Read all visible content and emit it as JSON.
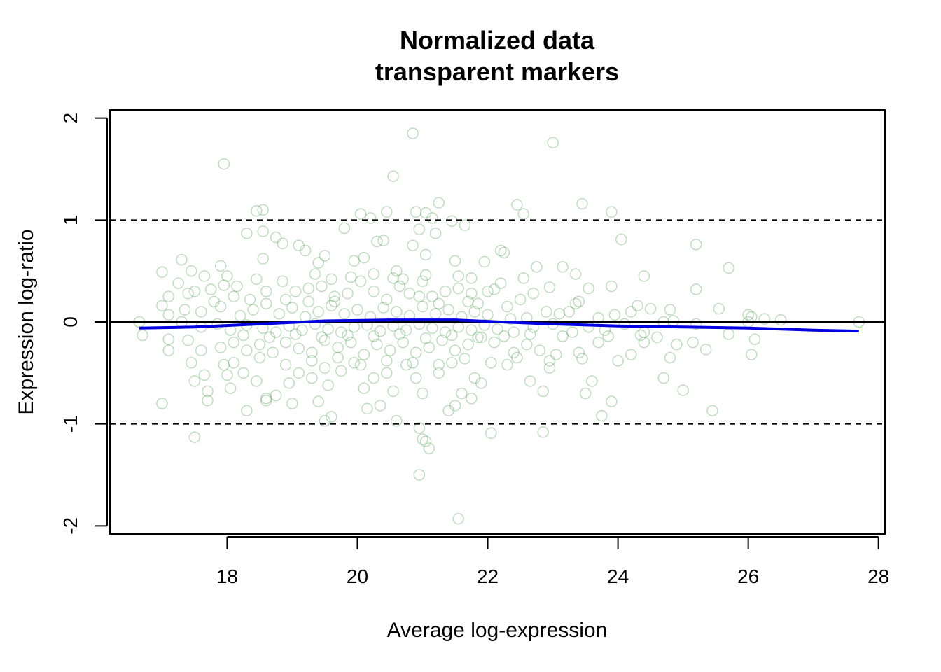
{
  "chart_data": {
    "type": "scatter",
    "title": [
      "Normalized data",
      "transparent markers"
    ],
    "xlabel": "Average log-expression",
    "ylabel": "Expression log-ratio",
    "xlim": [
      16.2,
      28.1
    ],
    "ylim": [
      -2.08,
      2.08
    ],
    "xticks": [
      "18",
      "20",
      "22",
      "24",
      "26",
      "28"
    ],
    "yticks": [
      "-2",
      "-1",
      "0",
      "1",
      "2"
    ],
    "grid": false,
    "legend": "none",
    "point_color": "#2e8b2e",
    "line_color": "#0000e0",
    "reference_lines": {
      "solid": 0,
      "dashed": [
        1,
        -1
      ]
    },
    "points": [
      [
        20.85,
        1.85
      ],
      [
        23.0,
        1.76
      ],
      [
        17.95,
        1.55
      ],
      [
        20.55,
        1.43
      ],
      [
        18.45,
        1.09
      ],
      [
        18.55,
        1.1
      ],
      [
        20.05,
        1.06
      ],
      [
        20.2,
        1.02
      ],
      [
        20.45,
        1.08
      ],
      [
        20.9,
        1.08
      ],
      [
        21.05,
        1.07
      ],
      [
        21.15,
        1.02
      ],
      [
        21.25,
        1.17
      ],
      [
        21.45,
        0.99
      ],
      [
        21.65,
        0.95
      ],
      [
        22.45,
        1.15
      ],
      [
        22.55,
        1.06
      ],
      [
        23.45,
        1.16
      ],
      [
        23.9,
        1.08
      ],
      [
        19.8,
        0.92
      ],
      [
        20.95,
        0.91
      ],
      [
        21.2,
        0.87
      ],
      [
        18.3,
        0.87
      ],
      [
        18.55,
        0.89
      ],
      [
        18.75,
        0.83
      ],
      [
        18.85,
        0.77
      ],
      [
        19.1,
        0.75
      ],
      [
        19.2,
        0.7
      ],
      [
        20.3,
        0.79
      ],
      [
        20.4,
        0.8
      ],
      [
        20.85,
        0.75
      ],
      [
        21.05,
        0.66
      ],
      [
        22.2,
        0.7
      ],
      [
        22.25,
        0.68
      ],
      [
        24.05,
        0.81
      ],
      [
        25.2,
        0.76
      ],
      [
        17.3,
        0.61
      ],
      [
        17.0,
        0.49
      ],
      [
        17.45,
        0.5
      ],
      [
        17.65,
        0.45
      ],
      [
        17.9,
        0.55
      ],
      [
        18.55,
        0.62
      ],
      [
        19.4,
        0.58
      ],
      [
        19.5,
        0.65
      ],
      [
        19.95,
        0.6
      ],
      [
        20.1,
        0.63
      ],
      [
        20.6,
        0.5
      ],
      [
        21.05,
        0.46
      ],
      [
        21.5,
        0.6
      ],
      [
        21.75,
        0.43
      ],
      [
        21.95,
        0.59
      ],
      [
        22.75,
        0.54
      ],
      [
        23.15,
        0.54
      ],
      [
        23.35,
        0.47
      ],
      [
        24.4,
        0.45
      ],
      [
        25.7,
        0.53
      ],
      [
        17.1,
        0.25
      ],
      [
        17.25,
        0.38
      ],
      [
        17.4,
        0.28
      ],
      [
        17.5,
        0.3
      ],
      [
        17.75,
        0.32
      ],
      [
        17.95,
        0.36
      ],
      [
        18.1,
        0.25
      ],
      [
        18.35,
        0.22
      ],
      [
        18.6,
        0.3
      ],
      [
        18.85,
        0.4
      ],
      [
        19.05,
        0.3
      ],
      [
        19.25,
        0.33
      ],
      [
        19.45,
        0.35
      ],
      [
        19.65,
        0.25
      ],
      [
        19.85,
        0.28
      ],
      [
        20.05,
        0.4
      ],
      [
        20.25,
        0.3
      ],
      [
        20.45,
        0.22
      ],
      [
        20.65,
        0.35
      ],
      [
        20.8,
        0.28
      ],
      [
        21.0,
        0.4
      ],
      [
        21.15,
        0.25
      ],
      [
        21.35,
        0.3
      ],
      [
        21.55,
        0.33
      ],
      [
        21.75,
        0.28
      ],
      [
        22.0,
        0.3
      ],
      [
        22.2,
        0.38
      ],
      [
        22.5,
        0.22
      ],
      [
        22.7,
        0.28
      ],
      [
        22.95,
        0.34
      ],
      [
        23.4,
        0.2
      ],
      [
        23.55,
        0.33
      ],
      [
        23.9,
        0.35
      ],
      [
        24.3,
        0.16
      ],
      [
        25.2,
        0.32
      ],
      [
        17.0,
        0.16
      ],
      [
        17.35,
        0.12
      ],
      [
        17.6,
        0.1
      ],
      [
        17.9,
        0.15
      ],
      [
        18.2,
        0.06
      ],
      [
        18.4,
        0.12
      ],
      [
        18.6,
        0.18
      ],
      [
        18.8,
        0.08
      ],
      [
        19.0,
        0.14
      ],
      [
        19.2,
        0.05
      ],
      [
        19.4,
        0.1
      ],
      [
        19.6,
        0.16
      ],
      [
        19.8,
        0.08
      ],
      [
        20.0,
        0.12
      ],
      [
        20.2,
        0.05
      ],
      [
        20.4,
        0.14
      ],
      [
        20.6,
        0.1
      ],
      [
        20.8,
        0.06
      ],
      [
        21.0,
        0.15
      ],
      [
        21.2,
        0.08
      ],
      [
        21.4,
        0.12
      ],
      [
        21.6,
        0.05
      ],
      [
        21.8,
        0.1
      ],
      [
        22.0,
        0.07
      ],
      [
        22.3,
        0.15
      ],
      [
        22.6,
        0.04
      ],
      [
        22.9,
        0.1
      ],
      [
        23.1,
        0.08
      ],
      [
        23.35,
        0.18
      ],
      [
        23.7,
        0.04
      ],
      [
        23.95,
        0.07
      ],
      [
        24.2,
        0.1
      ],
      [
        24.5,
        0.13
      ],
      [
        24.8,
        0.12
      ],
      [
        25.55,
        0.13
      ],
      [
        26.0,
        0.07
      ],
      [
        26.05,
        0.05
      ],
      [
        26.25,
        0.03
      ],
      [
        26.5,
        0.02
      ],
      [
        27.7,
        0.0
      ],
      [
        16.65,
        0.0
      ],
      [
        16.7,
        -0.13
      ],
      [
        17.1,
        0.07
      ],
      [
        17.3,
        0.0
      ],
      [
        17.6,
        -0.05
      ],
      [
        17.85,
        -0.02
      ],
      [
        18.05,
        -0.08
      ],
      [
        18.3,
        -0.03
      ],
      [
        18.55,
        -0.06
      ],
      [
        18.75,
        -0.1
      ],
      [
        18.95,
        -0.04
      ],
      [
        19.15,
        -0.08
      ],
      [
        19.35,
        -0.02
      ],
      [
        19.55,
        -0.07
      ],
      [
        19.75,
        -0.1
      ],
      [
        19.95,
        -0.05
      ],
      [
        20.15,
        -0.03
      ],
      [
        20.35,
        -0.09
      ],
      [
        20.55,
        -0.04
      ],
      [
        20.75,
        -0.08
      ],
      [
        20.95,
        -0.02
      ],
      [
        21.15,
        -0.06
      ],
      [
        21.35,
        -0.1
      ],
      [
        21.55,
        -0.05
      ],
      [
        21.75,
        -0.08
      ],
      [
        21.95,
        -0.03
      ],
      [
        22.15,
        -0.07
      ],
      [
        22.4,
        -0.1
      ],
      [
        22.7,
        -0.05
      ],
      [
        23.0,
        -0.02
      ],
      [
        23.3,
        -0.1
      ],
      [
        23.55,
        -0.05
      ],
      [
        23.8,
        -0.08
      ],
      [
        24.1,
        -0.02
      ],
      [
        24.4,
        -0.1
      ],
      [
        24.7,
        0.0
      ],
      [
        24.85,
        0.01
      ],
      [
        25.2,
        -0.02
      ],
      [
        25.7,
        -0.12
      ],
      [
        26.0,
        0.0
      ],
      [
        17.1,
        -0.17
      ],
      [
        17.1,
        -0.28
      ],
      [
        17.4,
        -0.18
      ],
      [
        17.6,
        -0.28
      ],
      [
        17.9,
        -0.25
      ],
      [
        18.1,
        -0.2
      ],
      [
        18.3,
        -0.28
      ],
      [
        18.5,
        -0.22
      ],
      [
        18.7,
        -0.3
      ],
      [
        18.9,
        -0.2
      ],
      [
        19.1,
        -0.26
      ],
      [
        19.3,
        -0.3
      ],
      [
        19.5,
        -0.18
      ],
      [
        19.7,
        -0.25
      ],
      [
        19.9,
        -0.2
      ],
      [
        20.1,
        -0.32
      ],
      [
        20.3,
        -0.22
      ],
      [
        20.5,
        -0.28
      ],
      [
        20.7,
        -0.2
      ],
      [
        20.9,
        -0.3
      ],
      [
        21.1,
        -0.25
      ],
      [
        21.3,
        -0.18
      ],
      [
        21.5,
        -0.28
      ],
      [
        21.7,
        -0.22
      ],
      [
        21.9,
        -0.15
      ],
      [
        22.1,
        -0.2
      ],
      [
        22.4,
        -0.3
      ],
      [
        22.6,
        -0.22
      ],
      [
        22.8,
        -0.28
      ],
      [
        23.05,
        -0.32
      ],
      [
        23.4,
        -0.3
      ],
      [
        23.7,
        -0.2
      ],
      [
        24.0,
        -0.38
      ],
      [
        24.4,
        -0.2
      ],
      [
        24.9,
        -0.22
      ],
      [
        25.15,
        -0.2
      ],
      [
        25.35,
        -0.27
      ],
      [
        26.05,
        -0.32
      ],
      [
        26.1,
        -0.17
      ],
      [
        17.45,
        -0.4
      ],
      [
        17.5,
        -0.58
      ],
      [
        17.65,
        -0.52
      ],
      [
        17.7,
        -0.68
      ],
      [
        17.95,
        -0.42
      ],
      [
        18.0,
        -0.52
      ],
      [
        18.05,
        -0.65
      ],
      [
        18.25,
        -0.5
      ],
      [
        18.45,
        -0.58
      ],
      [
        18.6,
        -0.75
      ],
      [
        18.75,
        -0.72
      ],
      [
        18.95,
        -0.6
      ],
      [
        19.1,
        -0.5
      ],
      [
        19.3,
        -0.55
      ],
      [
        19.5,
        -0.45
      ],
      [
        19.55,
        -0.62
      ],
      [
        19.75,
        -0.48
      ],
      [
        19.95,
        -0.4
      ],
      [
        20.1,
        -0.65
      ],
      [
        20.25,
        -0.55
      ],
      [
        20.45,
        -0.5
      ],
      [
        20.55,
        -0.68
      ],
      [
        20.75,
        -0.42
      ],
      [
        20.9,
        -0.55
      ],
      [
        21.0,
        -0.7
      ],
      [
        21.25,
        -0.5
      ],
      [
        21.45,
        -0.4
      ],
      [
        21.6,
        -0.7
      ],
      [
        21.8,
        -0.55
      ],
      [
        21.9,
        -0.6
      ],
      [
        22.3,
        -0.42
      ],
      [
        22.65,
        -0.58
      ],
      [
        22.85,
        -0.68
      ],
      [
        22.95,
        -0.45
      ],
      [
        23.5,
        -0.7
      ],
      [
        23.6,
        -0.58
      ],
      [
        24.7,
        -0.55
      ],
      [
        25.0,
        -0.67
      ],
      [
        17.0,
        -0.8
      ],
      [
        17.7,
        -0.77
      ],
      [
        18.3,
        -0.87
      ],
      [
        18.6,
        -0.77
      ],
      [
        19.0,
        -0.8
      ],
      [
        19.4,
        -0.78
      ],
      [
        19.5,
        -0.97
      ],
      [
        19.6,
        -0.93
      ],
      [
        20.15,
        -0.85
      ],
      [
        20.35,
        -0.82
      ],
      [
        20.6,
        -0.97
      ],
      [
        21.4,
        -0.87
      ],
      [
        21.5,
        -0.82
      ],
      [
        21.75,
        -0.75
      ],
      [
        23.75,
        -0.92
      ],
      [
        23.9,
        -0.78
      ],
      [
        25.45,
        -0.87
      ],
      [
        17.5,
        -1.13
      ],
      [
        20.95,
        -1.04
      ],
      [
        21.0,
        -1.15
      ],
      [
        21.05,
        -1.17
      ],
      [
        21.1,
        -1.24
      ],
      [
        22.05,
        -1.09
      ],
      [
        22.85,
        -1.08
      ],
      [
        20.95,
        -1.5
      ],
      [
        21.55,
        -1.93
      ],
      [
        19.25,
        0.2
      ],
      [
        19.35,
        0.47
      ],
      [
        19.65,
        0.2
      ],
      [
        19.9,
        0.44
      ],
      [
        20.25,
        0.47
      ],
      [
        20.7,
        0.42
      ],
      [
        20.95,
        0.25
      ],
      [
        21.25,
        0.18
      ],
      [
        21.55,
        0.45
      ],
      [
        21.85,
        0.18
      ],
      [
        22.1,
        0.32
      ],
      [
        22.35,
        0.03
      ],
      [
        22.55,
        0.43
      ],
      [
        23.25,
        0.1
      ],
      [
        17.8,
        0.2
      ],
      [
        18.0,
        0.45
      ],
      [
        18.15,
        0.35
      ],
      [
        18.45,
        0.42
      ],
      [
        18.9,
        0.22
      ],
      [
        19.6,
        0.42
      ],
      [
        20.55,
        0.43
      ],
      [
        21.7,
        0.2
      ],
      [
        19.05,
        -0.12
      ],
      [
        19.45,
        -0.15
      ],
      [
        19.85,
        -0.13
      ],
      [
        20.25,
        -0.14
      ],
      [
        20.65,
        -0.12
      ],
      [
        21.05,
        -0.16
      ],
      [
        21.45,
        -0.13
      ],
      [
        21.85,
        -0.15
      ],
      [
        18.25,
        -0.13
      ],
      [
        18.65,
        -0.15
      ],
      [
        22.25,
        -0.14
      ],
      [
        22.65,
        -0.12
      ],
      [
        23.15,
        -0.14
      ],
      [
        23.85,
        -0.14
      ],
      [
        24.35,
        -0.13
      ],
      [
        24.6,
        -0.15
      ],
      [
        18.1,
        -0.4
      ],
      [
        18.5,
        -0.35
      ],
      [
        18.9,
        -0.42
      ],
      [
        19.3,
        -0.38
      ],
      [
        19.7,
        -0.35
      ],
      [
        20.05,
        -0.42
      ],
      [
        20.45,
        -0.38
      ],
      [
        20.85,
        -0.4
      ],
      [
        21.25,
        -0.42
      ],
      [
        21.65,
        -0.36
      ],
      [
        22.05,
        -0.4
      ],
      [
        22.45,
        -0.35
      ],
      [
        22.95,
        -0.38
      ],
      [
        23.45,
        -0.36
      ],
      [
        24.2,
        -0.32
      ],
      [
        24.8,
        -0.35
      ]
    ],
    "trend": [
      [
        16.65,
        -0.06
      ],
      [
        17.5,
        -0.05
      ],
      [
        18.5,
        -0.02
      ],
      [
        19.5,
        0.01
      ],
      [
        20.5,
        0.02
      ],
      [
        21.5,
        0.02
      ],
      [
        22.2,
        0.0
      ],
      [
        23.0,
        -0.02
      ],
      [
        24.0,
        -0.04
      ],
      [
        25.0,
        -0.05
      ],
      [
        26.0,
        -0.06
      ],
      [
        27.0,
        -0.08
      ],
      [
        27.7,
        -0.09
      ]
    ]
  }
}
